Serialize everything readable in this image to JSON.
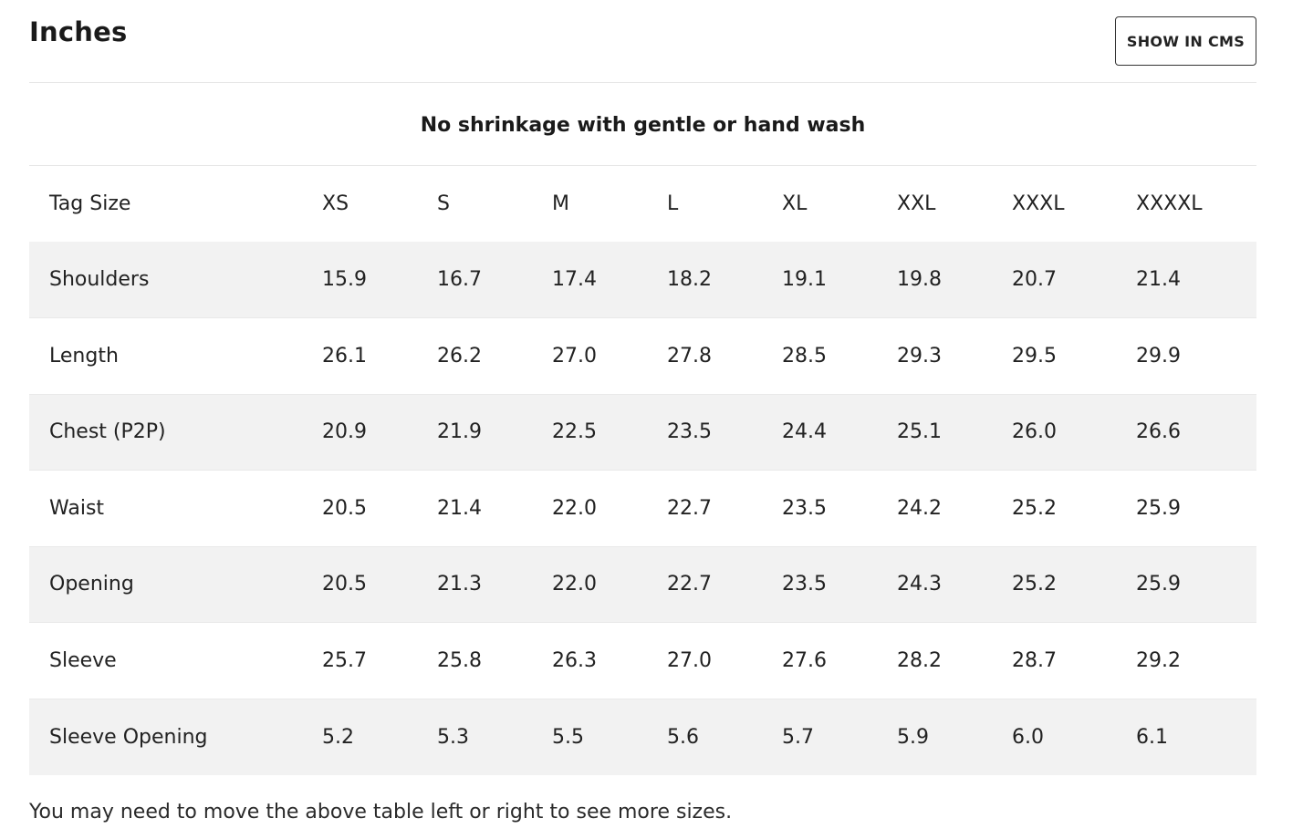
{
  "header": {
    "title": "Inches",
    "cms_button_label": "SHOW IN CMS"
  },
  "subtitle": "No shrinkage with gentle or hand wash",
  "table": {
    "header_label": "Tag Size",
    "sizes": [
      "XS",
      "S",
      "M",
      "L",
      "XL",
      "XXL",
      "XXXL",
      "XXXXL"
    ],
    "rows": [
      {
        "label": "Shoulders",
        "values": [
          "15.9",
          "16.7",
          "17.4",
          "18.2",
          "19.1",
          "19.8",
          "20.7",
          "21.4"
        ]
      },
      {
        "label": "Length",
        "values": [
          "26.1",
          "26.2",
          "27.0",
          "27.8",
          "28.5",
          "29.3",
          "29.5",
          "29.9"
        ]
      },
      {
        "label": "Chest (P2P)",
        "values": [
          "20.9",
          "21.9",
          "22.5",
          "23.5",
          "24.4",
          "25.1",
          "26.0",
          "26.6"
        ]
      },
      {
        "label": "Waist",
        "values": [
          "20.5",
          "21.4",
          "22.0",
          "22.7",
          "23.5",
          "24.2",
          "25.2",
          "25.9"
        ]
      },
      {
        "label": "Opening",
        "values": [
          "20.5",
          "21.3",
          "22.0",
          "22.7",
          "23.5",
          "24.3",
          "25.2",
          "25.9"
        ]
      },
      {
        "label": "Sleeve",
        "values": [
          "25.7",
          "25.8",
          "26.3",
          "27.0",
          "27.6",
          "28.2",
          "28.7",
          "29.2"
        ]
      },
      {
        "label": "Sleeve Opening",
        "values": [
          "5.2",
          "5.3",
          "5.5",
          "5.6",
          "5.7",
          "5.9",
          "6.0",
          "6.1"
        ]
      }
    ]
  },
  "footnote": "You may need to move the above table left or right to see more sizes."
}
